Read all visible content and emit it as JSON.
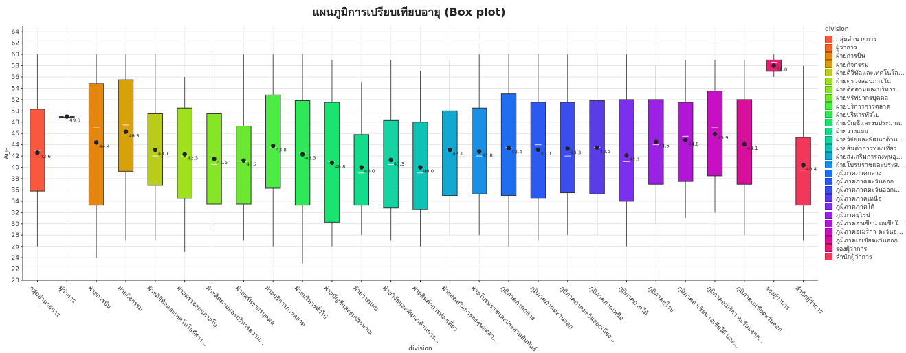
{
  "chart_data": {
    "type": "box",
    "title": "แผนภูมิการเปรียบเทียบอายุ (Box plot)",
    "xlabel": "division",
    "ylabel": "Age",
    "ylim": [
      20,
      65
    ],
    "yticks": [
      20,
      22,
      24,
      26,
      28,
      30,
      32,
      34,
      36,
      38,
      40,
      42,
      44,
      46,
      48,
      50,
      52,
      54,
      56,
      58,
      60,
      62,
      64
    ],
    "grid": true,
    "legend_title": "division",
    "legend_position": "right",
    "categories": [
      {
        "name": "กลุ่มอำนวยการ",
        "legend": "กลุ่มอำนวยการ",
        "color": "#f8583e",
        "min": 26,
        "q1": 35.8,
        "median": 43,
        "q3": 50.3,
        "max": 60,
        "mean": 42.6,
        "mean_label": "42.6"
      },
      {
        "name": "ผู้ว่าการ",
        "legend": "ผู้ว่าการ",
        "color": "#f3642a",
        "min": 49,
        "q1": 49,
        "median": 49,
        "q3": 49,
        "max": 49,
        "mean": 49.0,
        "mean_label": "49.0"
      },
      {
        "name": "ฝ่ายการบิน",
        "legend": "ฝ่ายการบิน",
        "color": "#e4860d",
        "min": 24,
        "q1": 33.3,
        "median": 47,
        "q3": 54.8,
        "max": 60,
        "mean": 44.4,
        "mean_label": "44.4"
      },
      {
        "name": "ฝ่ายกิจกรรม",
        "legend": "ฝ่ายกิจกรรม",
        "color": "#d7a10c",
        "min": 27,
        "q1": 39.3,
        "median": 47.5,
        "q3": 55.5,
        "max": 60,
        "mean": 46.3,
        "mean_label": "46.3"
      },
      {
        "name": "ฝ่ายดิจิทัลและเทคโนโลยีสาร...",
        "legend": "ฝ่ายดิจิทัลและเทคโนโลยี...",
        "color": "#b9cc19",
        "min": 27,
        "q1": 36.8,
        "median": 42,
        "q3": 49.5,
        "max": 60,
        "mean": 43.1,
        "mean_label": "43.1"
      },
      {
        "name": "ฝ่ายตรวจสอบภายใน",
        "legend": "ฝ่ายตรวจสอบภายใน",
        "color": "#9ee11c",
        "min": 25,
        "q1": 34.5,
        "median": 42,
        "q3": 50.5,
        "max": 56,
        "mean": 42.3,
        "mean_label": "42.3"
      },
      {
        "name": "ฝ่ายติดตามและบริหารความ...",
        "legend": "ฝ่ายติดตามและบริหารค...",
        "color": "#86e527",
        "min": 29,
        "q1": 33.5,
        "median": 40.5,
        "q3": 49.5,
        "max": 60,
        "mean": 41.5,
        "mean_label": "41.5"
      },
      {
        "name": "ฝ่ายทรัพยากรบุคคล",
        "legend": "ฝ่ายทรัพยากรบุคคล",
        "color": "#6be832",
        "min": 27,
        "q1": 33.5,
        "median": 41,
        "q3": 47.3,
        "max": 60,
        "mean": 41.2,
        "mean_label": "41.2"
      },
      {
        "name": "ฝ่ายบริการการตลาด",
        "legend": "ฝ่ายบริการการตลาด",
        "color": "#4cec45",
        "min": 26,
        "q1": 36.3,
        "median": 43.5,
        "q3": 52.8,
        "max": 60,
        "mean": 43.8,
        "mean_label": "43.8"
      },
      {
        "name": "ฝ่ายบริหารทั่วไป",
        "legend": "ฝ่ายบริหารทั่วไป",
        "color": "#2ee85a",
        "min": 23,
        "q1": 33.3,
        "median": 42.5,
        "q3": 51.8,
        "max": 60,
        "mean": 42.3,
        "mean_label": "42.3"
      },
      {
        "name": "ฝ่ายบัญชีและงบประมาณ",
        "legend": "ฝ่ายบัญชีและงบประมาณ",
        "color": "#18e570",
        "min": 26,
        "q1": 30.3,
        "median": 41,
        "q3": 51.5,
        "max": 59,
        "mean": 40.8,
        "mean_label": "40.8"
      },
      {
        "name": "ฝ่ายวางแผน",
        "legend": "ฝ่ายวางแผน",
        "color": "#14dc8a",
        "min": 28,
        "q1": 33.3,
        "median": 39,
        "q3": 45.8,
        "max": 55,
        "mean": 40.0,
        "mean_label": "40.0"
      },
      {
        "name": "ฝ่ายวิจัยและพัฒนาด้านการ...",
        "legend": "ฝ่ายวิจัยและพัฒนาด้าน...",
        "color": "#15d3a3",
        "min": 27,
        "q1": 32.8,
        "median": 40.5,
        "q3": 48.3,
        "max": 59,
        "mean": 41.3,
        "mean_label": "41.3"
      },
      {
        "name": "ฝ่ายสินค้าการท่องเที่ยว",
        "legend": "ฝ่ายสินค้าการท่องเที่ยว",
        "color": "#0fc2b5",
        "min": 26,
        "q1": 32.5,
        "median": 39,
        "q3": 48,
        "max": 57,
        "mean": 40.0,
        "mean_label": "40.0"
      },
      {
        "name": "ฝ่ายส่งเสริมการลงทุนอุตสา...",
        "legend": "ฝ่ายส่งเสริมการลงทุนอุต...",
        "color": "#11a9d1",
        "min": 28,
        "q1": 35,
        "median": 43,
        "q3": 50,
        "max": 59,
        "mean": 43.1,
        "mean_label": "43.1"
      },
      {
        "name": "ฝ่ายโบรนราชและประสานสัมพันธ์",
        "legend": "ฝ่ายโบรนราชและประสานสั...",
        "color": "#1b8fe3",
        "min": 28,
        "q1": 35.3,
        "median": 42,
        "q3": 50.5,
        "max": 60,
        "mean": 42.8,
        "mean_label": "42.8"
      },
      {
        "name": "ภูมิภาคภาคกลาง",
        "legend": "ภูมิภาคภาคกลาง",
        "color": "#1f6ef0",
        "min": 26,
        "q1": 35,
        "median": 43.5,
        "q3": 53,
        "max": 60,
        "mean": 43.4,
        "mean_label": "43.4"
      },
      {
        "name": "ภูมิภาคภาคตะวันออก",
        "legend": "ภูมิภาคภาคตะวันออก",
        "color": "#2c5af0",
        "min": 27,
        "q1": 34.5,
        "median": 44,
        "q3": 51.5,
        "max": 60,
        "mean": 43.1,
        "mean_label": "43.1"
      },
      {
        "name": "ภูมิภาคภาคตะวันออกเฉียง...",
        "legend": "ภูมิภาคภาคตะวันออกเฉ...",
        "color": "#3b4ded",
        "min": 28,
        "q1": 35.5,
        "median": 42,
        "q3": 51.5,
        "max": 60,
        "mean": 43.3,
        "mean_label": "43.3"
      },
      {
        "name": "ภูมิภาคภาคเหนือ",
        "legend": "ภูมิภาคภาคเหนือ",
        "color": "#5a3de8",
        "min": 28,
        "q1": 35.3,
        "median": 43.5,
        "q3": 51.8,
        "max": 60,
        "mean": 43.5,
        "mean_label": "43.5"
      },
      {
        "name": "ภูมิภาคภาคใต้",
        "legend": "ภูมิภาคภาคใต้",
        "color": "#7a30ec",
        "min": 26,
        "q1": 34,
        "median": 41,
        "q3": 52,
        "max": 60,
        "mean": 42.1,
        "mean_label": "42.1"
      },
      {
        "name": "ภูมิภาคยุโรป",
        "legend": "ภูมิภาคยุโรป",
        "color": "#9a22e4",
        "min": 30,
        "q1": 37,
        "median": 44,
        "q3": 52,
        "max": 58,
        "mean": 44.5,
        "mean_label": "44.5"
      },
      {
        "name": "ภูมิภาคอาเซียน เอเชียใต้ และ...",
        "legend": "ภูมิภาคอาเซียน เอเชียใต้...",
        "color": "#b116d6",
        "min": 31,
        "q1": 37.5,
        "median": 45.5,
        "q3": 51.5,
        "max": 59,
        "mean": 44.8,
        "mean_label": "44.8"
      },
      {
        "name": "ภูมิภาคอเมริกา ตะวันออกก...",
        "legend": "ภูมิภาคอเมริกา ตะวันออ...",
        "color": "#c711c1",
        "min": 32,
        "q1": 38.5,
        "median": 47,
        "q3": 53.5,
        "max": 59,
        "mean": 45.9,
        "mean_label": "45.9"
      },
      {
        "name": "ภูมิภาคเอเชียตะวันออก",
        "legend": "ภูมิภาคเอเชียตะวันออก",
        "color": "#d80f9a",
        "min": 28,
        "q1": 37,
        "median": 45,
        "q3": 52,
        "max": 59,
        "mean": 44.1,
        "mean_label": "44.1"
      },
      {
        "name": "รองผู้ว่าการ",
        "legend": "รองผู้ว่าการ",
        "color": "#e81c75",
        "min": 56,
        "q1": 57,
        "median": 58.5,
        "q3": 59,
        "max": 60,
        "mean": 58.0,
        "mean_label": "58.0"
      },
      {
        "name": "สำนักผู้ว่าการ",
        "legend": "สำนักผู้ว่าการ",
        "color": "#f2385a",
        "min": 27,
        "q1": 33.3,
        "median": 39.5,
        "q3": 45.3,
        "max": 58,
        "mean": 40.4,
        "mean_label": "40.4"
      }
    ]
  }
}
